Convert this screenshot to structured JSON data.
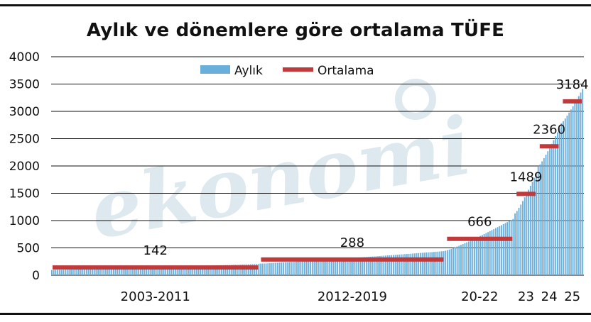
{
  "chart_data": {
    "type": "bar",
    "title": "Aylık ve dönemlere göre ortalama TÜFE",
    "ylim": [
      0,
      4000
    ],
    "yticks": [
      0,
      500,
      1000,
      1500,
      2000,
      2500,
      3000,
      3500,
      4000
    ],
    "legend": {
      "placement": "top-center",
      "bar_label": "Aylık",
      "line_label": "Ortalama"
    },
    "grid": true,
    "colors": {
      "bars": "#6aaedb",
      "average": "#c0393b",
      "grid": "#111111",
      "watermark": "#dde8ef"
    },
    "watermark": "ekonomi",
    "periods": [
      {
        "label": "2003-2011",
        "months": 108,
        "start_value": 95,
        "end_value": 205,
        "average": 142,
        "avg_label": "142"
      },
      {
        "label": "2012-2019",
        "months": 96,
        "start_value": 212,
        "end_value": 440,
        "average": 288,
        "avg_label": "288"
      },
      {
        "label": "20-22",
        "months": 36,
        "start_value": 448,
        "end_value": 1030,
        "average": 666,
        "avg_label": "666"
      },
      {
        "label": "23",
        "months": 12,
        "start_value": 1130,
        "end_value": 1860,
        "average": 1489,
        "avg_label": "1489"
      },
      {
        "label": "24",
        "months": 12,
        "start_value": 1985,
        "end_value": 2690,
        "average": 2360,
        "avg_label": "2360"
      },
      {
        "label": "25",
        "months": 12,
        "start_value": 2780,
        "end_value": 3410,
        "average": 3184,
        "avg_label": "3184"
      }
    ]
  }
}
